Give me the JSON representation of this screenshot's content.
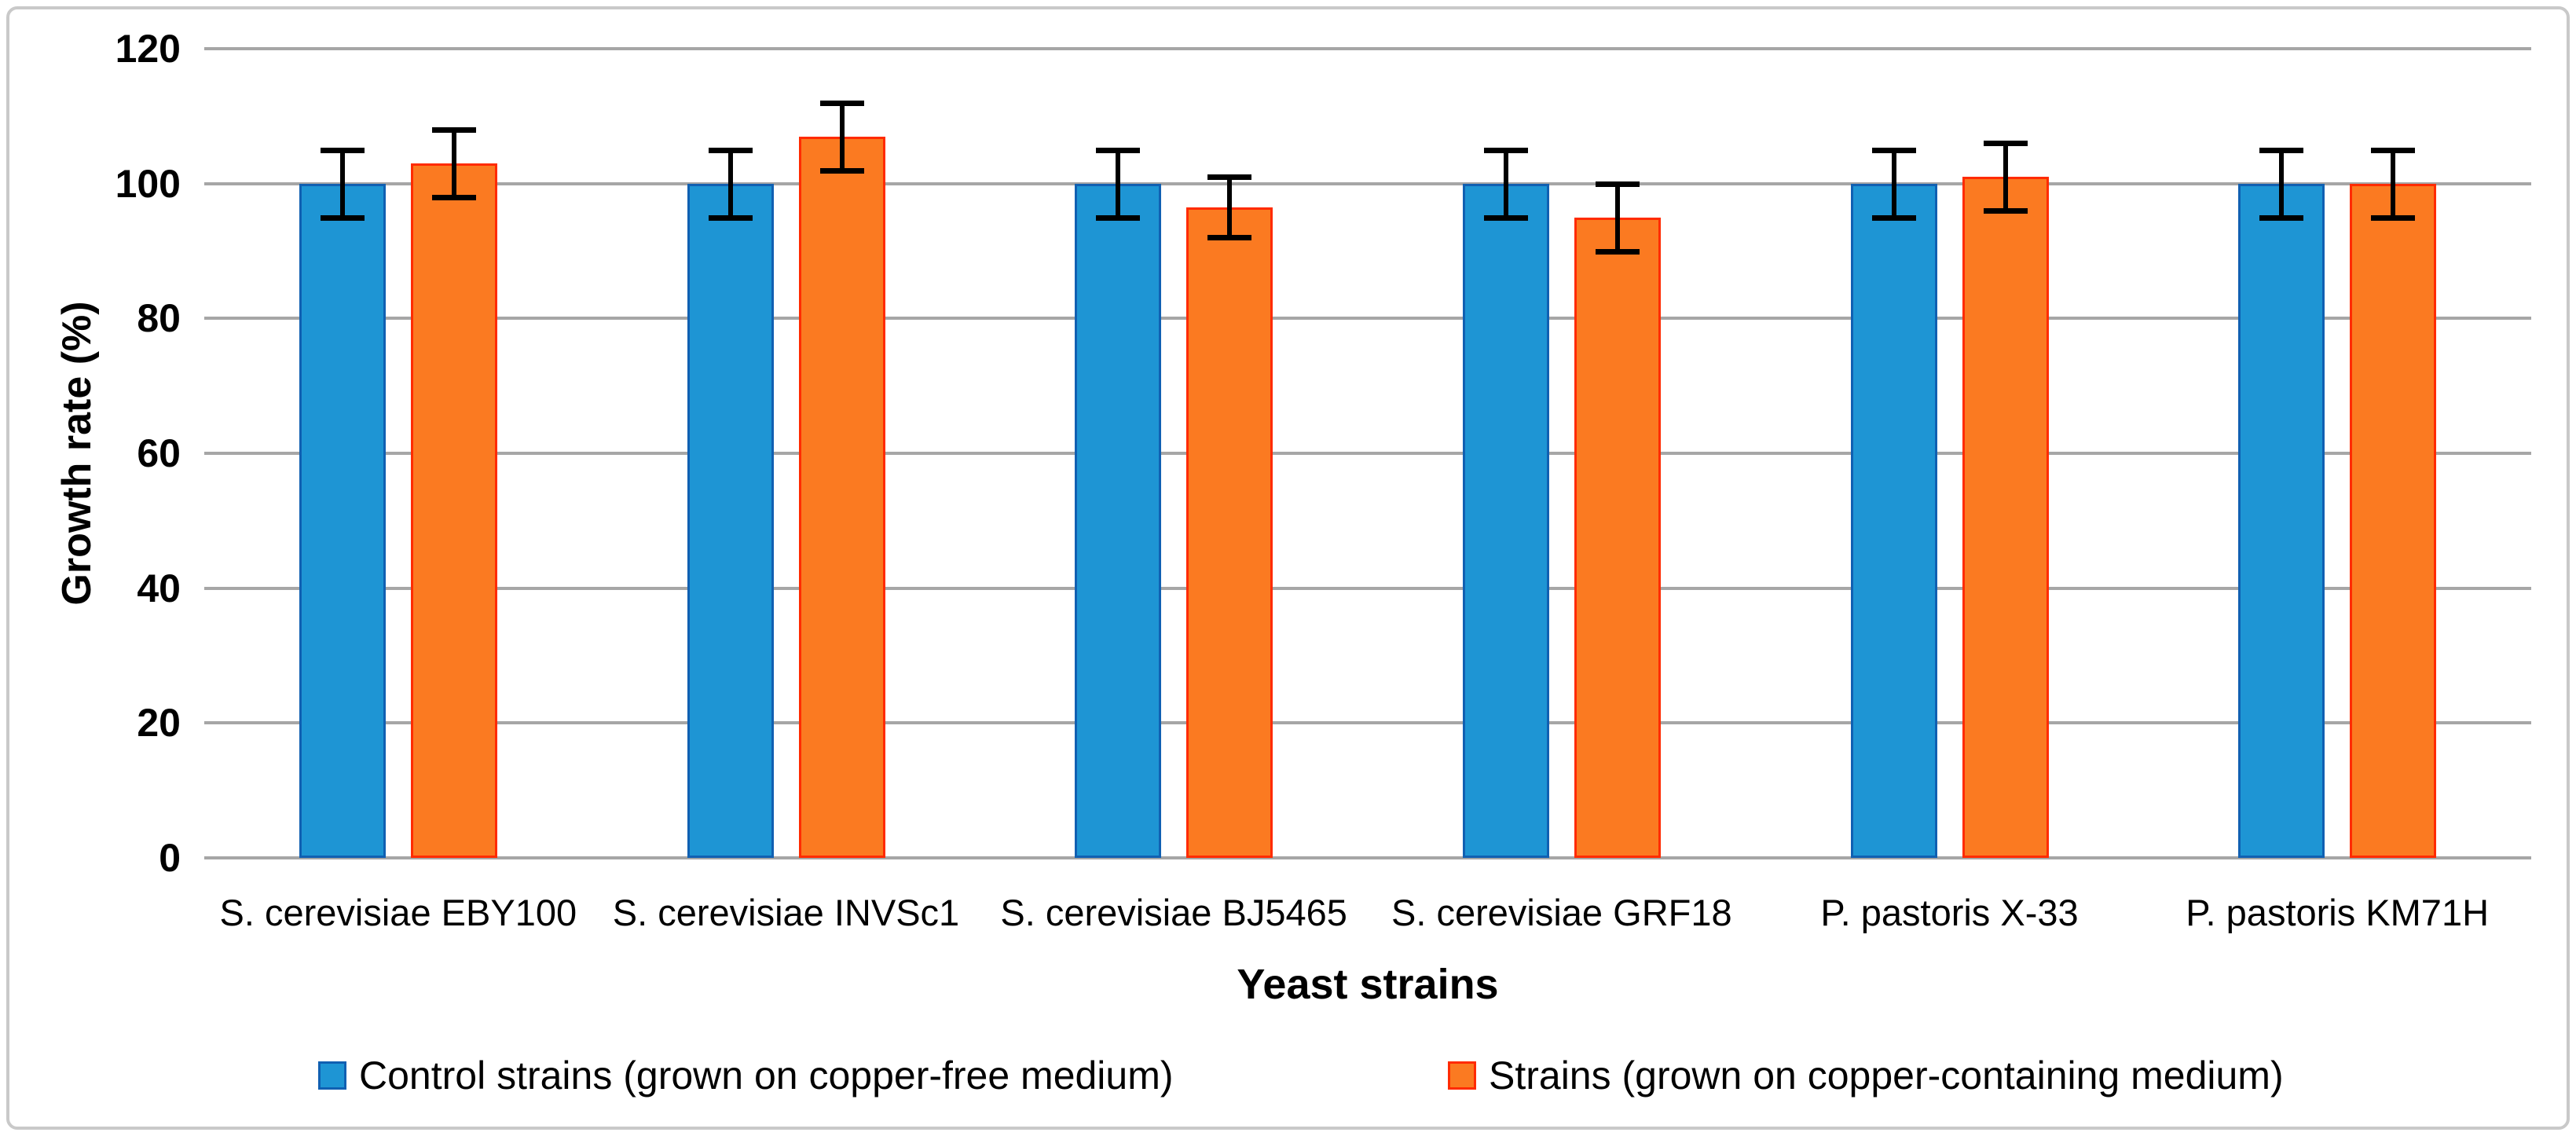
{
  "figure": {
    "background": "#ffffff",
    "border_color": "#c9c9c9"
  },
  "chart_data": {
    "type": "bar",
    "title": "",
    "xlabel": "Yeast strains",
    "ylabel": "Growth rate (%)",
    "ylim": [
      0,
      120
    ],
    "ytick_step": 20,
    "ytick_labels": [
      "0",
      "20",
      "40",
      "60",
      "80",
      "100",
      "120"
    ],
    "grid": true,
    "gridline_color": "#a6a6a6",
    "error_bar_color": "#000000",
    "legend_position": "bottom",
    "categories": [
      "S. cerevisiae EBY100",
      "S. cerevisiae INVSc1",
      "S. cerevisiae BJ5465",
      "S. cerevisiae GRF18",
      "P. pastoris X-33",
      "P. pastoris KM71H"
    ],
    "series": [
      {
        "name": "Control strains (grown on copper-free medium)",
        "fill": "#1e95d4",
        "border": "#1060b2",
        "values": [
          100,
          100,
          100,
          100,
          100,
          100
        ],
        "errors": [
          5,
          5,
          5,
          5,
          5,
          5
        ]
      },
      {
        "name": "Strains (grown on copper-containing medium)",
        "fill": "#fb7a21",
        "border": "#ff2b00",
        "values": [
          103,
          107,
          96.5,
          95,
          101,
          100
        ],
        "errors": [
          5,
          5,
          4.5,
          5,
          5,
          5
        ]
      }
    ]
  }
}
